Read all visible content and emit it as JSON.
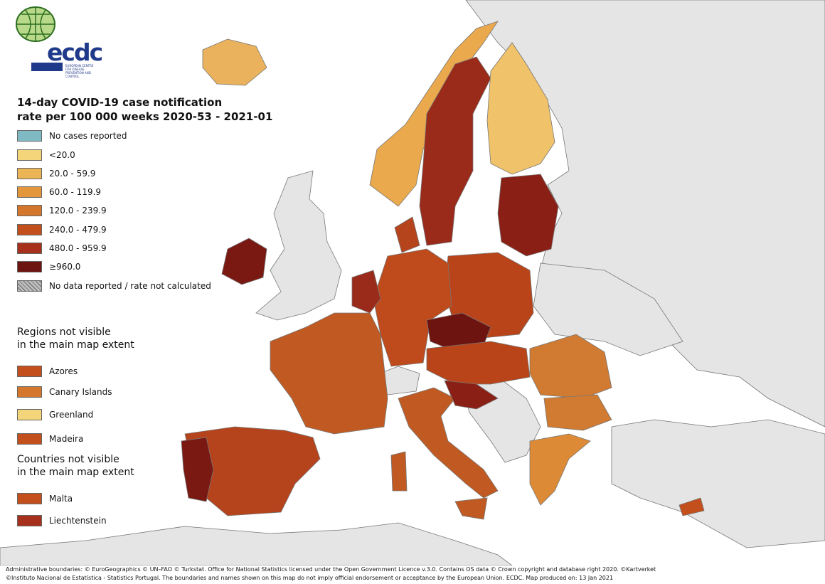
{
  "logo": {
    "text": "ecdc",
    "subtitle": "EUROPEAN CENTRE FOR DISEASE PREVENTION AND CONTROL"
  },
  "legend": {
    "title_line1": "14-day COVID-19 case notification",
    "title_line2": "rate per 100 000 weeks 2020-53 - 2021-01",
    "classes": [
      {
        "label": "No cases reported",
        "color": "#7fb9c2"
      },
      {
        "label": "<20.0",
        "color": "#f5d57a"
      },
      {
        "label": "20.0 - 59.9",
        "color": "#ebb454"
      },
      {
        "label": "60.0 - 119.9",
        "color": "#e3973a"
      },
      {
        "label": "120.0 - 239.9",
        "color": "#d4772d"
      },
      {
        "label": "240.0 - 479.9",
        "color": "#c34f1c"
      },
      {
        "label": "480.0 - 959.9",
        "color": "#a6301c"
      },
      {
        "label": "≥960.0",
        "color": "#6e1410"
      },
      {
        "label": "No data reported / rate not calculated",
        "color": "#bdbdbd"
      }
    ]
  },
  "regions_section": {
    "title_line1": "Regions not visible",
    "title_line2": "in the main map extent",
    "items": [
      {
        "label": "Azores",
        "color": "#c34f1c"
      },
      {
        "label": "Canary Islands",
        "color": "#d4772d"
      },
      {
        "label": "Greenland",
        "color": "#f5d57a"
      },
      {
        "label": "Madeira",
        "color": "#c34f1c"
      }
    ]
  },
  "countries_section": {
    "title_line1": "Countries not visible",
    "title_line2": "in the main map extent",
    "items": [
      {
        "label": "Malta",
        "color": "#c34f1c"
      },
      {
        "label": "Liechtenstein",
        "color": "#a6301c"
      }
    ]
  },
  "footer": {
    "line1": "Administrative boundaries: © EuroGeographics © UN–FAO © Turkstat. Office for National Statistics licensed under the Open Government Licence v.3.0. Contains OS data © Crown copyright and database right 2020. ©Kartverket",
    "line2": "©Instituto Nacional de Estatística - Statistics Portugal. The boundaries and names shown on this map do not imply official endorsement or acceptance by the European Union. ECDC. Map produced on: 13 Jan 2021"
  },
  "colors": {
    "sea": "#ffffff",
    "non_eu": "#e5e5e5",
    "border": "#555555"
  }
}
